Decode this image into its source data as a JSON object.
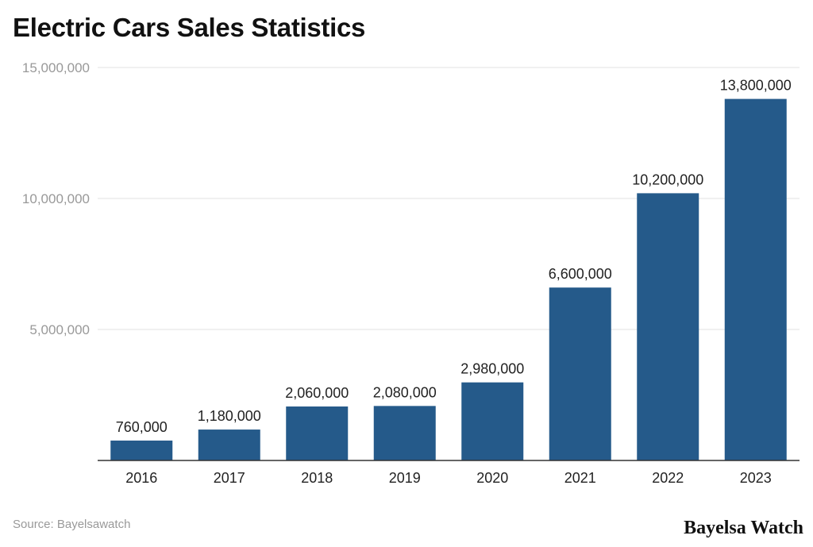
{
  "chart_data": {
    "type": "bar",
    "title": "Electric Cars Sales Statistics",
    "categories": [
      "2016",
      "2017",
      "2018",
      "2019",
      "2020",
      "2021",
      "2022",
      "2023"
    ],
    "values": [
      760000,
      1180000,
      2060000,
      2080000,
      2980000,
      6600000,
      10200000,
      13800000
    ],
    "data_labels": [
      "760,000",
      "1,180,000",
      "2,060,000",
      "2,080,000",
      "2,980,000",
      "6,600,000",
      "10,200,000",
      "13,800,000"
    ],
    "yticks": [
      5000000,
      10000000,
      15000000
    ],
    "ytick_labels": [
      "5,000,000",
      "10,000,000",
      "15,000,000"
    ],
    "ylim": [
      0,
      15000000
    ],
    "xlabel": "",
    "ylabel": "",
    "grid": true,
    "bar_color": "#255a8a"
  },
  "footer": {
    "source": "Source: Bayelsawatch",
    "logo": "Bayelsa Watch"
  }
}
